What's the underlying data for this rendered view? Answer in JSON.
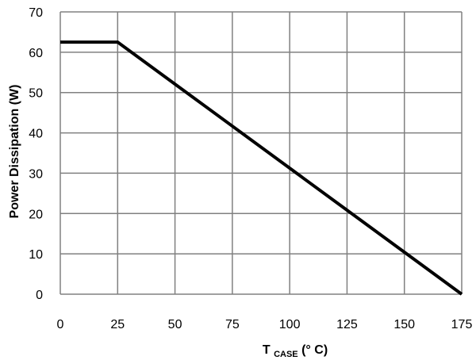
{
  "chart_data": {
    "type": "line",
    "xlabel": {
      "main": "T",
      "subscript": "CASE",
      "suffix": " (°  C)"
    },
    "ylabel": "Power Dissipation (W)",
    "xlim": [
      0,
      175
    ],
    "ylim": [
      0,
      70
    ],
    "x_ticks": [
      0,
      25,
      50,
      75,
      100,
      125,
      150,
      175
    ],
    "y_ticks": [
      0,
      10,
      20,
      30,
      40,
      50,
      60,
      70
    ],
    "grid": true,
    "series": [
      {
        "color": "#000000",
        "points": [
          [
            0,
            62.5
          ],
          [
            25,
            62.5
          ],
          [
            175,
            0
          ]
        ]
      }
    ]
  }
}
